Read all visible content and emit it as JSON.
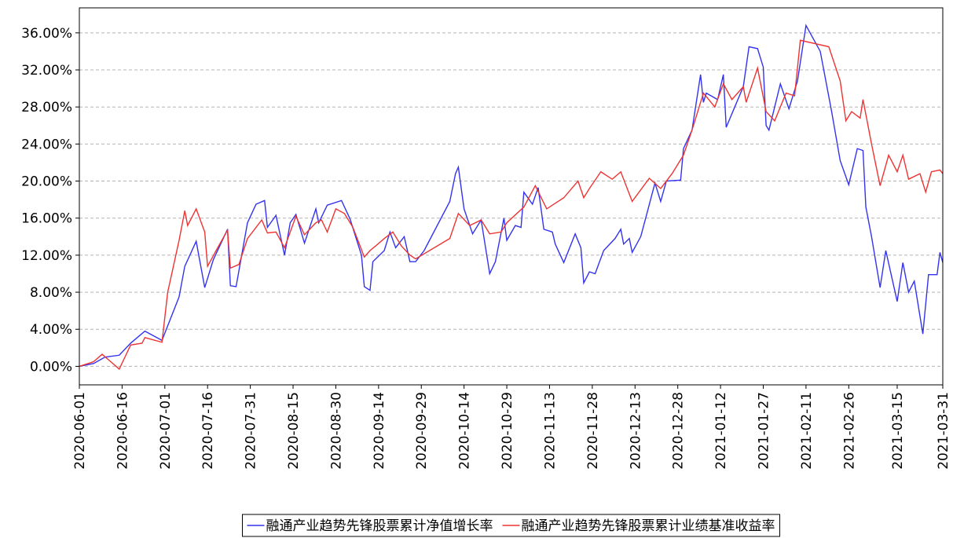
{
  "chart_data": {
    "type": "line",
    "xlim": [
      "2020-06-01",
      "2021-03-31"
    ],
    "xticks": [
      "2020-06-01",
      "2020-06-16",
      "2020-07-01",
      "2020-07-16",
      "2020-07-31",
      "2020-08-15",
      "2020-08-30",
      "2020-09-14",
      "2020-09-29",
      "2020-10-14",
      "2020-10-29",
      "2020-11-13",
      "2020-11-28",
      "2020-12-13",
      "2020-12-28",
      "2021-01-12",
      "2021-01-27",
      "2021-02-11",
      "2021-02-26",
      "2021-03-15",
      "2021-03-31"
    ],
    "ylim": [
      -2,
      38.7
    ],
    "yticks": [
      {
        "value": 0,
        "label": "0.00%"
      },
      {
        "value": 4,
        "label": "4.00%"
      },
      {
        "value": 8,
        "label": "8.00%"
      },
      {
        "value": 12,
        "label": "12.00%"
      },
      {
        "value": 16,
        "label": "16.00%"
      },
      {
        "value": 20,
        "label": "20.00%"
      },
      {
        "value": 24,
        "label": "24.00%"
      },
      {
        "value": 28,
        "label": "28.00%"
      },
      {
        "value": 32,
        "label": "32.00%"
      },
      {
        "value": 36,
        "label": "36.00%"
      }
    ],
    "grid": true,
    "legend": "bottom",
    "series": [
      {
        "name": "融通产业趋势先锋股票累计净值增长率",
        "color": "#3333ee",
        "x": [
          "2020-06-01",
          "2020-06-06",
          "2020-06-10",
          "2020-06-15",
          "2020-06-19",
          "2020-06-24",
          "2020-06-30",
          "2020-07-06",
          "2020-07-08",
          "2020-07-12",
          "2020-07-15",
          "2020-07-18",
          "2020-07-23",
          "2020-07-24",
          "2020-07-26",
          "2020-07-30",
          "2020-08-02",
          "2020-08-05",
          "2020-08-06",
          "2020-08-09",
          "2020-08-12",
          "2020-08-14",
          "2020-08-16",
          "2020-08-19",
          "2020-08-23",
          "2020-08-24",
          "2020-08-27",
          "2020-09-01",
          "2020-09-04",
          "2020-09-08",
          "2020-09-09",
          "2020-09-11",
          "2020-09-12",
          "2020-09-16",
          "2020-09-18",
          "2020-09-20",
          "2020-09-23",
          "2020-09-25",
          "2020-09-27",
          "2020-09-30",
          "2020-10-09",
          "2020-10-11",
          "2020-10-12",
          "2020-10-14",
          "2020-10-17",
          "2020-10-20",
          "2020-10-23",
          "2020-10-25",
          "2020-10-28",
          "2020-10-29",
          "2020-11-01",
          "2020-11-03",
          "2020-11-04",
          "2020-11-07",
          "2020-11-09",
          "2020-11-11",
          "2020-11-14",
          "2020-11-15",
          "2020-11-18",
          "2020-11-22",
          "2020-11-24",
          "2020-11-25",
          "2020-11-27",
          "2020-11-29",
          "2020-12-02",
          "2020-12-06",
          "2020-12-08",
          "2020-12-09",
          "2020-12-11",
          "2020-12-12",
          "2020-12-15",
          "2020-12-17",
          "2020-12-20",
          "2020-12-22",
          "2020-12-24",
          "2020-12-29",
          "2020-12-30",
          "2021-01-02",
          "2021-01-05",
          "2021-01-06",
          "2021-01-07",
          "2021-01-11",
          "2021-01-13",
          "2021-01-14",
          "2021-01-17",
          "2021-01-20",
          "2021-01-22",
          "2021-01-25",
          "2021-01-27",
          "2021-01-28",
          "2021-01-29",
          "2021-02-02",
          "2021-02-05",
          "2021-02-08",
          "2021-02-11",
          "2021-02-16",
          "2021-02-20",
          "2021-02-23",
          "2021-02-26",
          "2021-03-01",
          "2021-03-03",
          "2021-03-04",
          "2021-03-06",
          "2021-03-09",
          "2021-03-11",
          "2021-03-15",
          "2021-03-17",
          "2021-03-19",
          "2021-03-21",
          "2021-03-24",
          "2021-03-26",
          "2021-03-29",
          "2021-03-30",
          "2021-03-31"
        ],
        "values": [
          0.0,
          0.3,
          1.0,
          1.2,
          2.5,
          3.8,
          2.8,
          7.5,
          10.8,
          13.5,
          8.5,
          11.5,
          14.8,
          8.7,
          8.6,
          15.5,
          17.5,
          17.9,
          15.0,
          16.3,
          12.0,
          15.5,
          16.4,
          13.3,
          17.0,
          15.5,
          17.4,
          17.9,
          15.9,
          12.0,
          8.6,
          8.2,
          11.3,
          12.5,
          14.5,
          12.8,
          14.0,
          11.3,
          11.3,
          12.5,
          17.8,
          20.8,
          21.5,
          17.0,
          14.3,
          15.8,
          10.0,
          11.3,
          16.0,
          13.6,
          15.2,
          15.0,
          18.8,
          17.5,
          19.3,
          14.8,
          14.5,
          13.2,
          11.2,
          14.3,
          12.8,
          9.0,
          10.2,
          10.0,
          12.5,
          13.8,
          14.8,
          13.2,
          13.8,
          12.3,
          14.0,
          16.3,
          19.8,
          17.8,
          20.0,
          20.1,
          23.5,
          25.5,
          31.5,
          28.5,
          29.5,
          28.8,
          31.5,
          25.8,
          28.0,
          30.2,
          34.5,
          34.3,
          32.3,
          26.0,
          25.5,
          30.5,
          27.8,
          30.8,
          36.8,
          34.0,
          27.5,
          22.2,
          19.6,
          23.5,
          23.3,
          17.2,
          14.0,
          8.5,
          12.5,
          7.0,
          11.2,
          8.0,
          9.2,
          3.5,
          9.9,
          9.9,
          12.3,
          11.2
        ]
      },
      {
        "name": "融通产业趋势先锋股票累计业绩基准收益率",
        "color": "#ee3333",
        "x": [
          "2020-06-01",
          "2020-06-06",
          "2020-06-09",
          "2020-06-12",
          "2020-06-15",
          "2020-06-17",
          "2020-06-19",
          "2020-06-23",
          "2020-06-24",
          "2020-06-30",
          "2020-07-02",
          "2020-07-06",
          "2020-07-08",
          "2020-07-09",
          "2020-07-12",
          "2020-07-15",
          "2020-07-16",
          "2020-07-19",
          "2020-07-23",
          "2020-07-24",
          "2020-07-27",
          "2020-07-30",
          "2020-08-04",
          "2020-08-06",
          "2020-08-09",
          "2020-08-12",
          "2020-08-16",
          "2020-08-19",
          "2020-08-23",
          "2020-08-25",
          "2020-08-27",
          "2020-08-30",
          "2020-09-02",
          "2020-09-05",
          "2020-09-09",
          "2020-09-11",
          "2020-09-13",
          "2020-09-16",
          "2020-09-19",
          "2020-09-22",
          "2020-09-25",
          "2020-09-27",
          "2020-10-09",
          "2020-10-12",
          "2020-10-16",
          "2020-10-20",
          "2020-10-23",
          "2020-10-27",
          "2020-10-29",
          "2020-11-04",
          "2020-11-08",
          "2020-11-12",
          "2020-11-18",
          "2020-11-23",
          "2020-11-25",
          "2020-11-27",
          "2020-12-01",
          "2020-12-05",
          "2020-12-08",
          "2020-12-12",
          "2020-12-18",
          "2020-12-22",
          "2020-12-26",
          "2020-12-30",
          "2021-01-02",
          "2021-01-06",
          "2021-01-10",
          "2021-01-13",
          "2021-01-16",
          "2021-01-20",
          "2021-01-21",
          "2021-01-25",
          "2021-01-28",
          "2021-01-31",
          "2021-02-04",
          "2021-02-07",
          "2021-02-09",
          "2021-02-19",
          "2021-02-23",
          "2021-02-25",
          "2021-02-27",
          "2021-03-02",
          "2021-03-03",
          "2021-03-06",
          "2021-03-09",
          "2021-03-12",
          "2021-03-15",
          "2021-03-17",
          "2021-03-19",
          "2021-03-23",
          "2021-03-25",
          "2021-03-27",
          "2021-03-30",
          "2021-03-31"
        ],
        "values": [
          0.0,
          0.5,
          1.3,
          0.5,
          -0.3,
          1.0,
          2.3,
          2.5,
          3.1,
          2.6,
          8.0,
          13.6,
          16.8,
          15.2,
          17.0,
          14.5,
          10.8,
          12.5,
          14.7,
          10.6,
          11.0,
          13.8,
          15.8,
          14.4,
          14.5,
          12.8,
          16.2,
          14.2,
          15.5,
          15.8,
          14.5,
          17.0,
          16.5,
          15.0,
          11.8,
          12.5,
          13.0,
          13.8,
          14.5,
          13.0,
          12.0,
          11.6,
          13.8,
          16.5,
          15.2,
          15.8,
          14.3,
          14.5,
          15.5,
          17.2,
          19.5,
          17.0,
          18.2,
          20.0,
          18.2,
          19.2,
          21.0,
          20.2,
          21.0,
          17.8,
          20.3,
          19.2,
          20.8,
          22.8,
          25.5,
          29.5,
          28.0,
          30.5,
          28.8,
          30.2,
          28.5,
          32.2,
          27.5,
          26.5,
          29.5,
          29.2,
          35.2,
          34.5,
          30.8,
          26.5,
          27.5,
          26.8,
          28.8,
          24.0,
          19.5,
          22.8,
          21.0,
          22.8,
          20.2,
          20.8,
          18.8,
          21.0,
          21.2,
          20.8
        ]
      }
    ]
  }
}
